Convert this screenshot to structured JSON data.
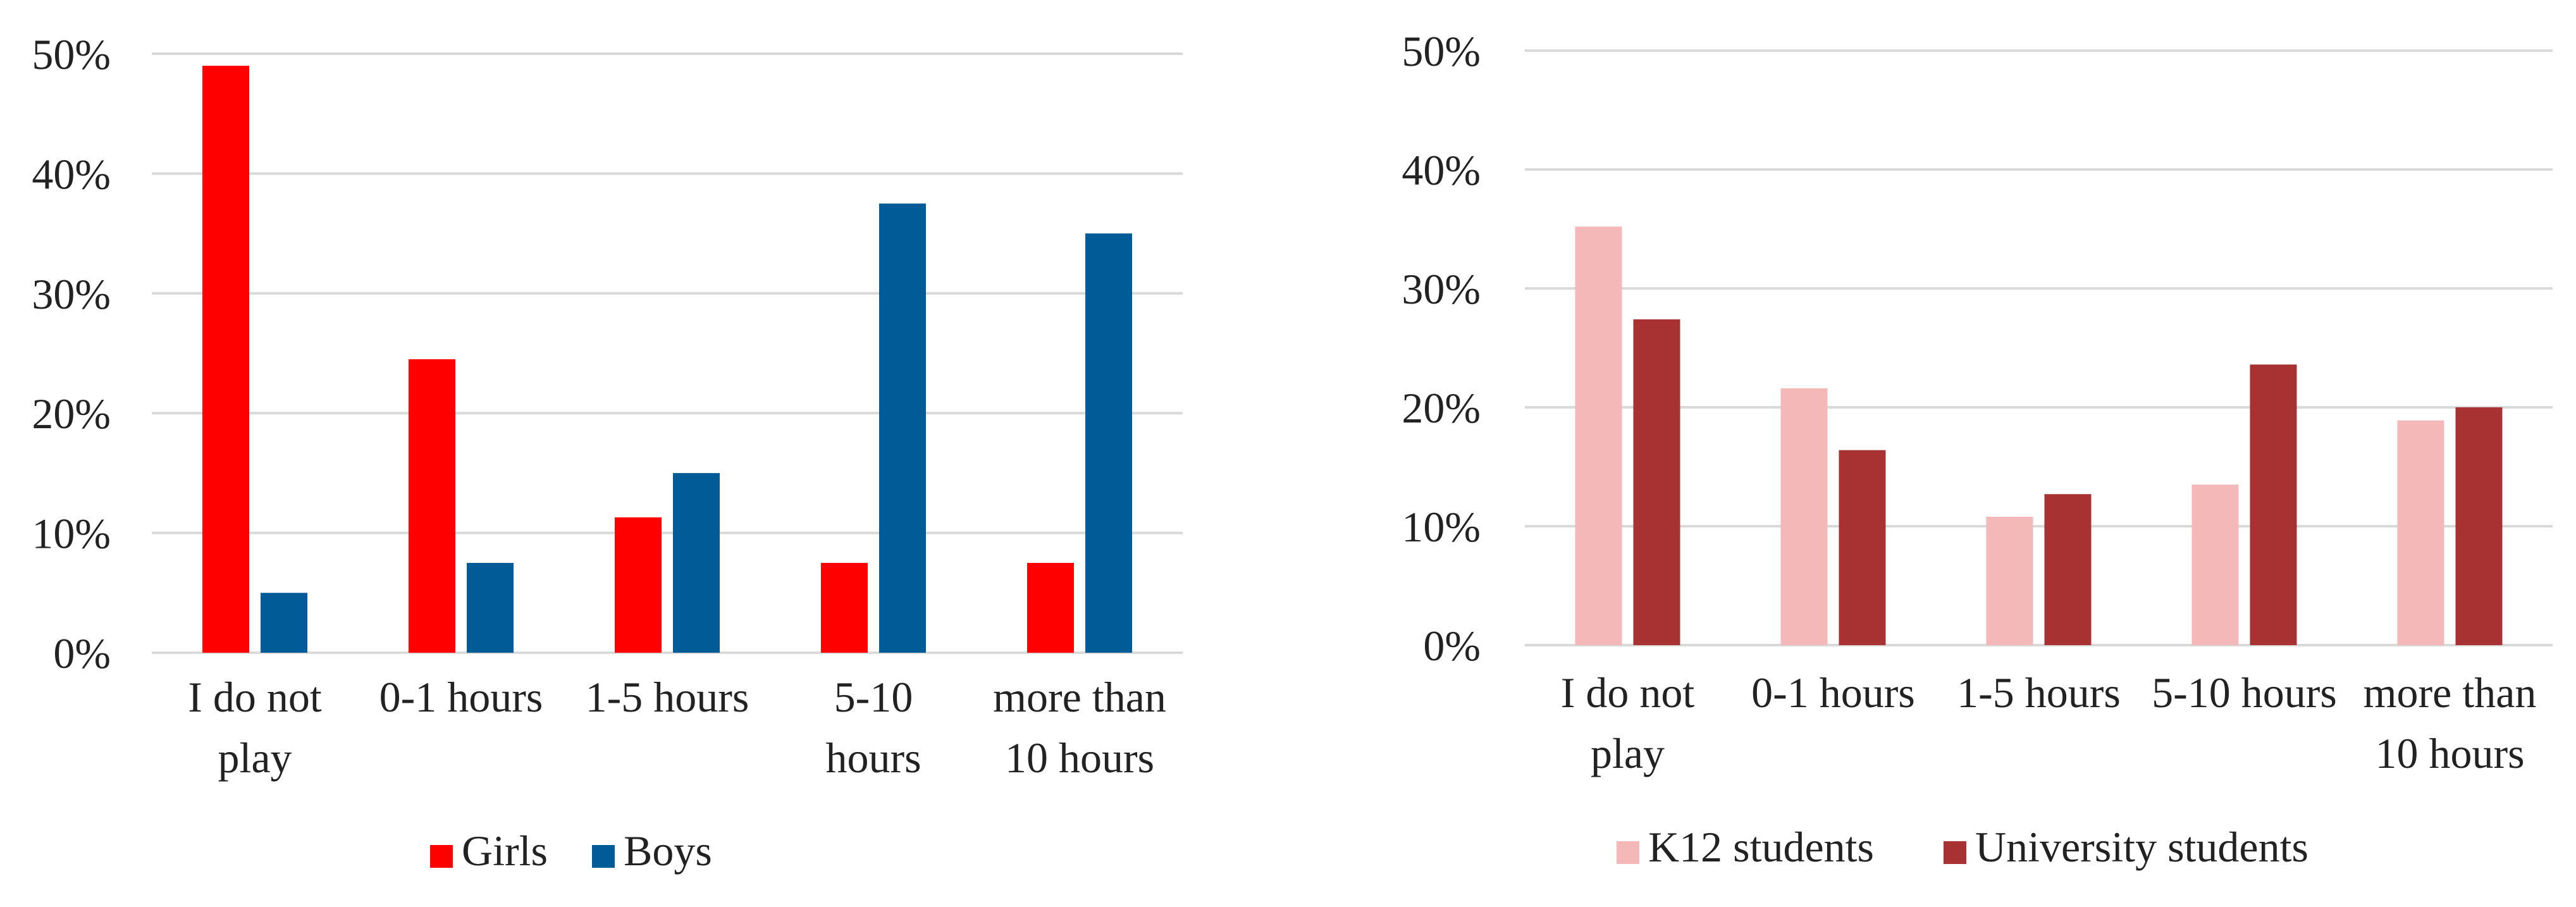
{
  "chart_data": [
    {
      "type": "bar",
      "title": "",
      "xlabel": "",
      "ylabel": "",
      "ylim": [
        0,
        50
      ],
      "yticks": [
        "0%",
        "10%",
        "20%",
        "30%",
        "40%",
        "50%"
      ],
      "categories": [
        [
          "I do not",
          "play"
        ],
        [
          "0-1 hours"
        ],
        [
          "1-5 hours"
        ],
        [
          "5-10",
          "hours"
        ],
        [
          "more than",
          "10 hours"
        ]
      ],
      "series": [
        {
          "name": "Girls",
          "color": "#ff0000",
          "values": [
            49,
            24.5,
            11.3,
            7.5,
            7.5
          ]
        },
        {
          "name": "Boys",
          "color": "#005b96",
          "values": [
            5,
            7.5,
            15,
            37.5,
            35
          ]
        }
      ],
      "grid": true,
      "legend": "bottom"
    },
    {
      "type": "bar",
      "title": "",
      "xlabel": "",
      "ylabel": "",
      "ylim": [
        0,
        50
      ],
      "yticks": [
        "0%",
        "10%",
        "20%",
        "30%",
        "40%",
        "50%"
      ],
      "categories": [
        [
          "I do not",
          "play"
        ],
        [
          "0-1 hours"
        ],
        [
          "1-5 hours"
        ],
        [
          "5-10 hours"
        ],
        [
          "more than",
          "10 hours"
        ]
      ],
      "series": [
        {
          "name": "K12 students",
          "color": "#f4b8b8",
          "values": [
            35.2,
            21.6,
            10.8,
            13.5,
            18.9
          ]
        },
        {
          "name": "University students",
          "color": "#a83232",
          "values": [
            27.4,
            16.4,
            12.7,
            23.6,
            20.0
          ]
        }
      ],
      "grid": true,
      "legend": "bottom"
    }
  ]
}
